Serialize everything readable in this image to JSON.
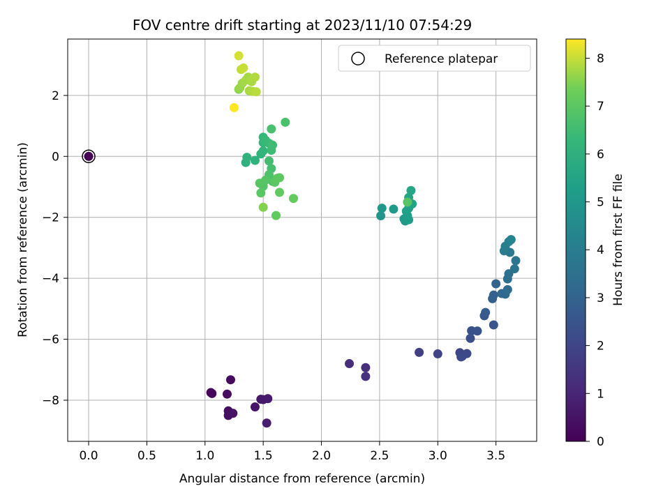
{
  "chart_data": {
    "type": "scatter",
    "title": "FOV centre drift starting at 2023/11/10 07:54:29",
    "xlabel": "Angular distance from reference (arcmin)",
    "ylabel": "Rotation from reference (arcmin)",
    "xlim": [
      -0.18,
      3.85
    ],
    "ylim": [
      -9.35,
      3.85
    ],
    "xticks": [
      0.0,
      0.5,
      1.0,
      1.5,
      2.0,
      2.5,
      3.0,
      3.5
    ],
    "xtick_labels": [
      "0.0",
      "0.5",
      "1.0",
      "1.5",
      "2.0",
      "2.5",
      "3.0",
      "3.5"
    ],
    "yticks": [
      2,
      0,
      -2,
      -4,
      -6,
      -8
    ],
    "ytick_labels": [
      "2",
      "0",
      "−2",
      "−4",
      "−6",
      "−8"
    ],
    "grid": true,
    "legend": {
      "label": "Reference platepar",
      "position": "top-right",
      "marker": "open-circle"
    },
    "reference_point": {
      "x": 0.0,
      "y": 0.0,
      "hours": 0.0
    },
    "colorbar": {
      "label": "Hours from first FF file",
      "colormap": "viridis",
      "range": [
        0,
        8.4
      ],
      "ticks": [
        0,
        1,
        2,
        3,
        4,
        5,
        6,
        7,
        8
      ],
      "tick_labels": [
        "0",
        "1",
        "2",
        "3",
        "4",
        "5",
        "6",
        "7",
        "8"
      ]
    },
    "points": [
      {
        "x": 1.05,
        "y": -7.75,
        "h": 0.1
      },
      {
        "x": 1.06,
        "y": -7.78,
        "h": 0.15
      },
      {
        "x": 1.22,
        "y": -7.33,
        "h": 0.25
      },
      {
        "x": 1.19,
        "y": -7.8,
        "h": 0.3
      },
      {
        "x": 1.2,
        "y": -8.35,
        "h": 0.35
      },
      {
        "x": 1.2,
        "y": -8.5,
        "h": 0.4
      },
      {
        "x": 1.24,
        "y": -8.43,
        "h": 0.45
      },
      {
        "x": 1.43,
        "y": -8.22,
        "h": 0.55
      },
      {
        "x": 1.48,
        "y": -7.97,
        "h": 0.6
      },
      {
        "x": 1.5,
        "y": -7.98,
        "h": 0.65
      },
      {
        "x": 1.54,
        "y": -7.95,
        "h": 0.7
      },
      {
        "x": 1.53,
        "y": -8.75,
        "h": 0.75
      },
      {
        "x": 2.24,
        "y": -6.8,
        "h": 1.2
      },
      {
        "x": 2.38,
        "y": -6.93,
        "h": 1.3
      },
      {
        "x": 2.38,
        "y": -7.22,
        "h": 1.35
      },
      {
        "x": 2.84,
        "y": -6.43,
        "h": 1.8
      },
      {
        "x": 3.0,
        "y": -6.48,
        "h": 1.9
      },
      {
        "x": 3.19,
        "y": -6.44,
        "h": 2.0
      },
      {
        "x": 3.21,
        "y": -6.56,
        "h": 2.05
      },
      {
        "x": 3.25,
        "y": -6.47,
        "h": 2.1
      },
      {
        "x": 3.2,
        "y": -6.58,
        "h": 2.15
      },
      {
        "x": 3.28,
        "y": -5.97,
        "h": 2.3
      },
      {
        "x": 3.29,
        "y": -5.72,
        "h": 2.4
      },
      {
        "x": 3.34,
        "y": -5.73,
        "h": 2.45
      },
      {
        "x": 3.48,
        "y": -5.53,
        "h": 2.5
      },
      {
        "x": 3.4,
        "y": -5.23,
        "h": 2.6
      },
      {
        "x": 3.41,
        "y": -5.12,
        "h": 2.7
      },
      {
        "x": 3.47,
        "y": -4.67,
        "h": 2.8
      },
      {
        "x": 3.48,
        "y": -4.55,
        "h": 2.9
      },
      {
        "x": 3.5,
        "y": -4.18,
        "h": 3.0
      },
      {
        "x": 3.55,
        "y": -4.5,
        "h": 3.1
      },
      {
        "x": 3.58,
        "y": -4.52,
        "h": 3.2
      },
      {
        "x": 3.6,
        "y": -4.37,
        "h": 3.3
      },
      {
        "x": 3.6,
        "y": -4.02,
        "h": 3.4
      },
      {
        "x": 3.61,
        "y": -3.85,
        "h": 3.5
      },
      {
        "x": 3.66,
        "y": -3.69,
        "h": 3.6
      },
      {
        "x": 3.67,
        "y": -3.42,
        "h": 3.7
      },
      {
        "x": 3.62,
        "y": -3.15,
        "h": 3.8
      },
      {
        "x": 3.57,
        "y": -3.1,
        "h": 3.9
      },
      {
        "x": 3.58,
        "y": -2.95,
        "h": 4.0
      },
      {
        "x": 3.61,
        "y": -2.8,
        "h": 4.1
      },
      {
        "x": 3.63,
        "y": -2.73,
        "h": 4.2
      },
      {
        "x": 2.51,
        "y": -1.95,
        "h": 4.9
      },
      {
        "x": 2.52,
        "y": -1.7,
        "h": 5.0
      },
      {
        "x": 2.62,
        "y": -1.73,
        "h": 5.05
      },
      {
        "x": 2.71,
        "y": -2.05,
        "h": 5.1
      },
      {
        "x": 2.72,
        "y": -2.12,
        "h": 5.15
      },
      {
        "x": 2.75,
        "y": -2.08,
        "h": 5.2
      },
      {
        "x": 2.74,
        "y": -1.95,
        "h": 5.25
      },
      {
        "x": 2.73,
        "y": -1.8,
        "h": 5.3
      },
      {
        "x": 2.75,
        "y": -1.7,
        "h": 5.35
      },
      {
        "x": 2.76,
        "y": -1.58,
        "h": 5.4
      },
      {
        "x": 2.78,
        "y": -1.56,
        "h": 5.45
      },
      {
        "x": 2.75,
        "y": -1.35,
        "h": 5.5
      },
      {
        "x": 2.77,
        "y": -1.12,
        "h": 5.6
      },
      {
        "x": 2.74,
        "y": -1.5,
        "h": 6.9
      },
      {
        "x": 1.35,
        "y": -0.2,
        "h": 6.0
      },
      {
        "x": 1.36,
        "y": -0.03,
        "h": 6.05
      },
      {
        "x": 1.43,
        "y": -0.13,
        "h": 6.1
      },
      {
        "x": 1.48,
        "y": 0.08,
        "h": 6.15
      },
      {
        "x": 1.5,
        "y": 0.18,
        "h": 6.2
      },
      {
        "x": 1.5,
        "y": 0.45,
        "h": 6.25
      },
      {
        "x": 1.5,
        "y": 0.63,
        "h": 6.3
      },
      {
        "x": 1.52,
        "y": 0.53,
        "h": 6.35
      },
      {
        "x": 1.55,
        "y": 0.43,
        "h": 6.4
      },
      {
        "x": 1.57,
        "y": 0.2,
        "h": 6.45
      },
      {
        "x": 1.58,
        "y": 0.37,
        "h": 6.5
      },
      {
        "x": 1.55,
        "y": -0.15,
        "h": 6.55
      },
      {
        "x": 1.57,
        "y": -0.4,
        "h": 6.6
      },
      {
        "x": 1.57,
        "y": 0.9,
        "h": 6.65
      },
      {
        "x": 1.69,
        "y": 1.12,
        "h": 6.7
      },
      {
        "x": 1.55,
        "y": -0.6,
        "h": 6.75
      },
      {
        "x": 1.58,
        "y": -0.82,
        "h": 6.8
      },
      {
        "x": 1.5,
        "y": -0.98,
        "h": 6.85
      },
      {
        "x": 1.52,
        "y": -0.78,
        "h": 6.9
      },
      {
        "x": 1.47,
        "y": -0.88,
        "h": 6.95
      },
      {
        "x": 1.48,
        "y": -1.2,
        "h": 7.0
      },
      {
        "x": 1.6,
        "y": -0.85,
        "h": 7.0
      },
      {
        "x": 1.62,
        "y": -0.72,
        "h": 7.05
      },
      {
        "x": 1.64,
        "y": -0.7,
        "h": 7.05
      },
      {
        "x": 1.64,
        "y": -1.18,
        "h": 7.1
      },
      {
        "x": 1.61,
        "y": -1.94,
        "h": 7.1
      },
      {
        "x": 1.76,
        "y": -1.38,
        "h": 7.15
      },
      {
        "x": 1.5,
        "y": -1.67,
        "h": 7.5
      },
      {
        "x": 1.29,
        "y": 2.2,
        "h": 7.6
      },
      {
        "x": 1.3,
        "y": 2.25,
        "h": 7.65
      },
      {
        "x": 1.32,
        "y": 2.4,
        "h": 7.7
      },
      {
        "x": 1.35,
        "y": 2.5,
        "h": 7.75
      },
      {
        "x": 1.37,
        "y": 2.6,
        "h": 7.75
      },
      {
        "x": 1.38,
        "y": 2.15,
        "h": 7.8
      },
      {
        "x": 1.4,
        "y": 2.45,
        "h": 7.8
      },
      {
        "x": 1.41,
        "y": 2.13,
        "h": 7.85
      },
      {
        "x": 1.43,
        "y": 2.6,
        "h": 7.85
      },
      {
        "x": 1.44,
        "y": 2.12,
        "h": 7.9
      },
      {
        "x": 1.31,
        "y": 2.85,
        "h": 7.95
      },
      {
        "x": 1.33,
        "y": 2.9,
        "h": 8.0
      },
      {
        "x": 1.29,
        "y": 3.3,
        "h": 8.1
      },
      {
        "x": 1.25,
        "y": 1.6,
        "h": 8.4
      }
    ]
  }
}
